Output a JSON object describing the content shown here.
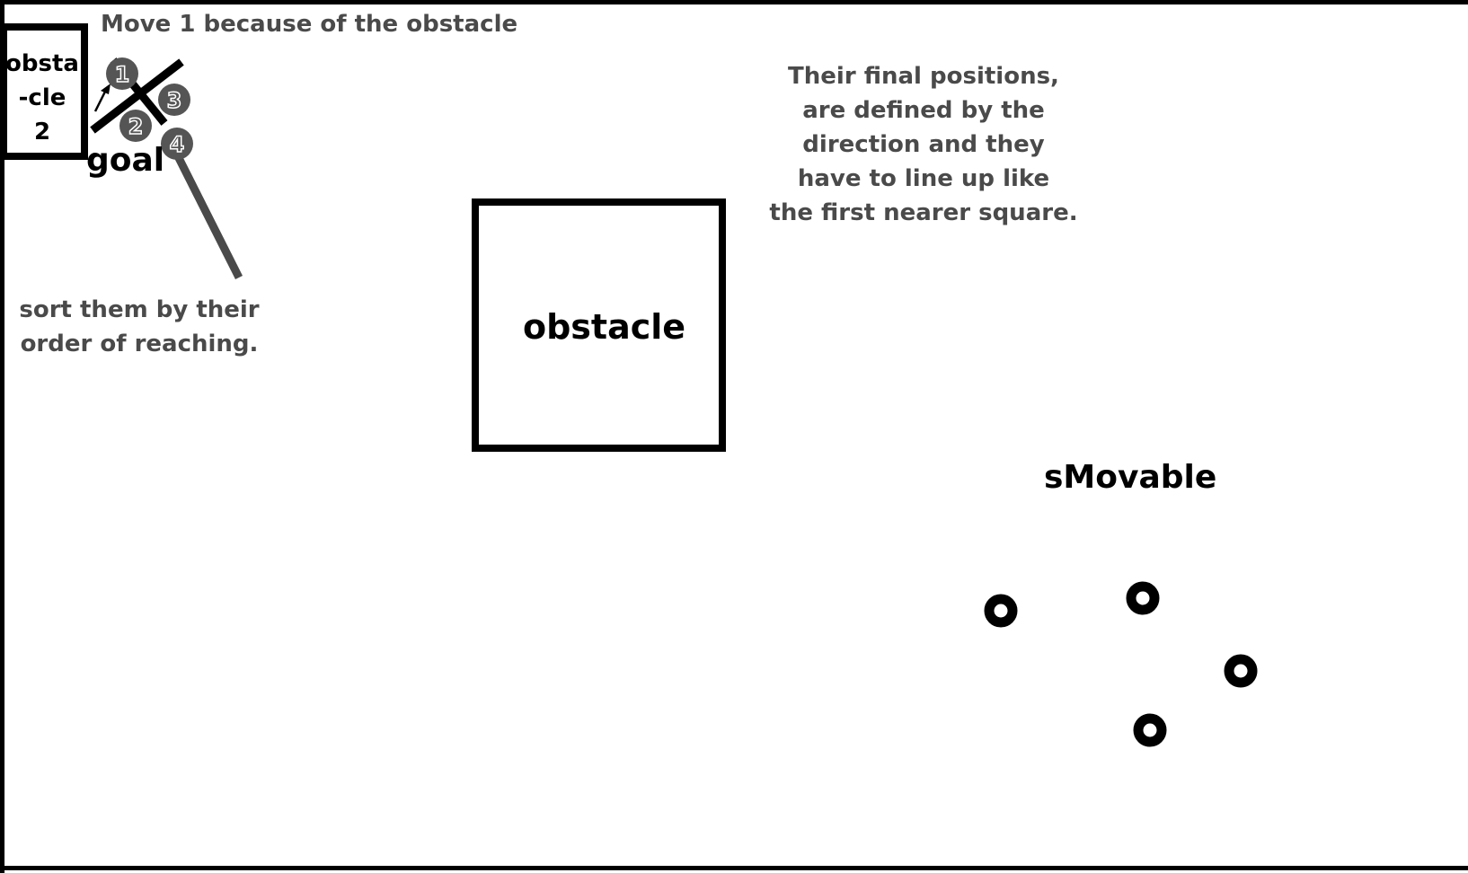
{
  "annotations": {
    "move_note": "Move 1 because of the obstacle",
    "final_positions_lines": [
      "Their final positions,",
      "are defined by the",
      "direction and they",
      "have to line up like",
      "the first nearer square."
    ],
    "sort_note_lines": [
      "sort them by their",
      "order of reaching."
    ]
  },
  "labels": {
    "goal": "goal",
    "obstacle": "obstacle",
    "obstacle2_lines": [
      "obsta",
      "-cle",
      "2"
    ],
    "smovable": "sMovable"
  },
  "goal_units": {
    "labels": [
      "1",
      "2",
      "3",
      "4"
    ]
  },
  "colors": {
    "stroke": "#000000",
    "annotation_text": "#4a4a4a",
    "goal_unit_fill": "#555555",
    "background": "#ffffff"
  }
}
